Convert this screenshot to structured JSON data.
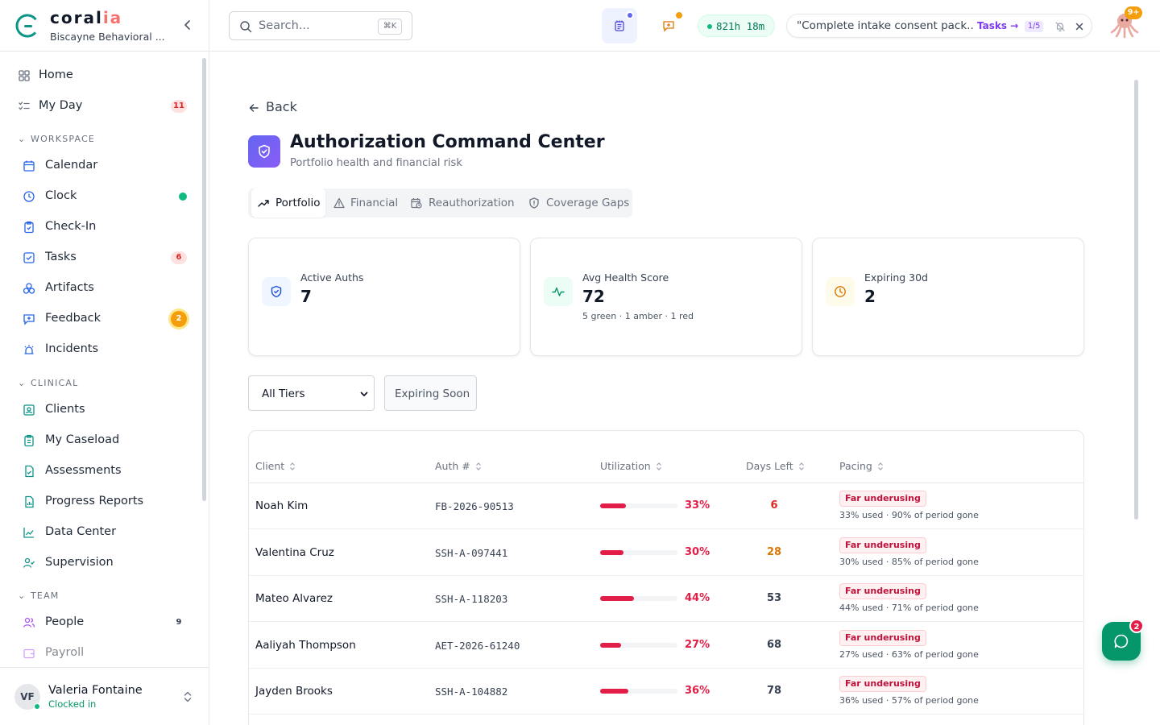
{
  "brand": {
    "name_main": "coral",
    "name_accent": "ia",
    "org": "Biscayne Behavioral ..."
  },
  "sidebar": {
    "top_items": [
      {
        "label": "Home",
        "icon": "grid-icon"
      },
      {
        "label": "My Day",
        "icon": "list-check-icon",
        "badge": "11"
      }
    ],
    "sections": [
      {
        "title": "WORKSPACE",
        "items": [
          {
            "label": "Calendar",
            "icon": "calendar-icon"
          },
          {
            "label": "Clock",
            "icon": "clock-icon"
          },
          {
            "label": "Check-In",
            "icon": "clipboard-icon"
          },
          {
            "label": "Tasks",
            "icon": "checkbox-icon",
            "badge": "6"
          },
          {
            "label": "Artifacts",
            "icon": "shapes-icon"
          },
          {
            "label": "Feedback",
            "icon": "message-plus-icon",
            "badge": "2"
          },
          {
            "label": "Incidents",
            "icon": "siren-icon"
          }
        ]
      },
      {
        "title": "CLINICAL",
        "items": [
          {
            "label": "Clients",
            "icon": "contact-icon"
          },
          {
            "label": "My Caseload",
            "icon": "clipboard-list-icon"
          },
          {
            "label": "Assessments",
            "icon": "file-check-icon"
          },
          {
            "label": "Progress Reports",
            "icon": "file-chart-icon"
          },
          {
            "label": "Data Center",
            "icon": "line-chart-icon"
          },
          {
            "label": "Supervision",
            "icon": "user-check-icon"
          }
        ]
      },
      {
        "title": "TEAM",
        "items": [
          {
            "label": "People",
            "icon": "users-icon",
            "badge": "9"
          },
          {
            "label": "Payroll",
            "icon": "wallet-icon"
          }
        ]
      }
    ]
  },
  "user": {
    "initials": "VF",
    "name": "Valeria Fontaine",
    "status": "Clocked in"
  },
  "header": {
    "search_placeholder": "Search...",
    "search_shortcut": "⌘K",
    "timer": "821h 18m",
    "task_text": "\"Complete intake consent pack...",
    "task_link": "Tasks →",
    "task_count": "1/5",
    "notif_badge": "9+"
  },
  "page": {
    "back_label": "Back",
    "title": "Authorization Command Center",
    "subtitle": "Portfolio health and financial risk",
    "tabs": [
      {
        "label": "Portfolio",
        "icon": "trending-up-icon",
        "active": true
      },
      {
        "label": "Financial",
        "icon": "alert-triangle-icon"
      },
      {
        "label": "Reauthorization",
        "icon": "calendar-clock-icon"
      },
      {
        "label": "Coverage Gaps",
        "icon": "shield-alert-icon"
      }
    ],
    "cards": [
      {
        "label": "Active Auths",
        "value": "7",
        "icon": "shield-check-icon",
        "color": "#1d4ed8",
        "bg": "#eff6ff"
      },
      {
        "label": "Avg Health Score",
        "value": "72",
        "note": "5 green · 1 amber · 1 red",
        "icon": "activity-icon",
        "color": "#059669",
        "bg": "#ecfdf5"
      },
      {
        "label": "Expiring 30d",
        "value": "2",
        "icon": "clock-icon",
        "color": "#d97706",
        "bg": "#fffbeb"
      }
    ],
    "filter_select": "All Tiers",
    "filter_button": "Expiring Soon"
  },
  "table": {
    "columns": [
      "Client",
      "Auth #",
      "Utilization",
      "Days Left",
      "Pacing"
    ],
    "rows": [
      {
        "client": "Noah Kim",
        "auth": "FB-2026-90513",
        "util_pct": 33,
        "util_label": "33%",
        "days": "6",
        "days_color": "#dc2626",
        "tag": "Far underusing",
        "note": "33% used · 90% of period gone"
      },
      {
        "client": "Valentina Cruz",
        "auth": "SSH-A-097441",
        "util_pct": 30,
        "util_label": "30%",
        "days": "28",
        "days_color": "#d97706",
        "tag": "Far underusing",
        "note": "30% used · 85% of period gone"
      },
      {
        "client": "Mateo Alvarez",
        "auth": "SSH-A-118203",
        "util_pct": 44,
        "util_label": "44%",
        "days": "53",
        "days_color": "#374151",
        "tag": "Far underusing",
        "note": "44% used · 71% of period gone"
      },
      {
        "client": "Aaliyah Thompson",
        "auth": "AET-2026-61240",
        "util_pct": 27,
        "util_label": "27%",
        "days": "68",
        "days_color": "#374151",
        "tag": "Far underusing",
        "note": "27% used · 63% of period gone"
      },
      {
        "client": "Jayden Brooks",
        "auth": "SSH-A-104882",
        "util_pct": 36,
        "util_label": "36%",
        "days": "78",
        "days_color": "#374151",
        "tag": "Far underusing",
        "note": "36% used · 57% of period gone"
      }
    ]
  },
  "chat": {
    "badge": "2"
  }
}
